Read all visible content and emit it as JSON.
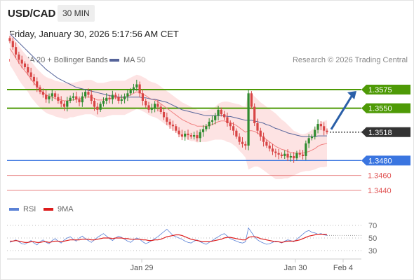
{
  "header": {
    "pair": "USD/CAD",
    "timeframe": "30 MIN",
    "datetime": "Friday, January 30, 2026 5:17:56 AM CET"
  },
  "legend": {
    "ma20": "MA 20 + Bollinger Bands",
    "ma50": "MA 50",
    "credit": "Research © 2026 Trading Central",
    "rsi": "RSI",
    "rsi_ma": "9MA"
  },
  "colors": {
    "bull": "#2e8b2e",
    "bear": "#d84545",
    "ma20": "#f08080",
    "band_fill": "#fde3e3",
    "ma50": "#56649a",
    "resistance": "#4e9a06",
    "current": "#333333",
    "pivot": "#3a75e0",
    "support": "#e05555",
    "rsi": "#5b82d6",
    "rsi_ma": "#dd1b1b",
    "arrow": "#2a5fa8"
  },
  "chart_data": [
    {
      "type": "candlestick",
      "title": "USD/CAD 30 MIN",
      "x_ticks": [
        "Jan 29",
        "Jan 30",
        "Feb 4"
      ],
      "ylim": [
        1.3425,
        1.3605
      ],
      "levels": [
        {
          "label": "1.3575",
          "value": 1.3575,
          "kind": "resistance"
        },
        {
          "label": "1.3550",
          "value": 1.355,
          "kind": "resistance"
        },
        {
          "label": "1.3518",
          "value": 1.3518,
          "kind": "current"
        },
        {
          "label": "1.3480",
          "value": 1.348,
          "kind": "pivot"
        },
        {
          "label": "1.3460",
          "value": 1.346,
          "kind": "support"
        },
        {
          "label": "1.3440",
          "value": 1.344,
          "kind": "support"
        }
      ],
      "close": [
        1.364,
        1.3632,
        1.3622,
        1.3615,
        1.361,
        1.3605,
        1.3598,
        1.3592,
        1.3586,
        1.3578,
        1.3572,
        1.3568,
        1.3562,
        1.3566,
        1.357,
        1.3565,
        1.356,
        1.3556,
        1.3552,
        1.356,
        1.3564,
        1.3566,
        1.3562,
        1.3558,
        1.3566,
        1.3572,
        1.3568,
        1.356,
        1.3552,
        1.3548,
        1.3556,
        1.356,
        1.3564,
        1.3562,
        1.3568,
        1.3565,
        1.356,
        1.3562,
        1.3566,
        1.357,
        1.3574,
        1.3578,
        1.3582,
        1.357,
        1.356,
        1.3554,
        1.3548,
        1.355,
        1.3556,
        1.3552,
        1.3545,
        1.3538,
        1.3532,
        1.3528,
        1.3526,
        1.352,
        1.3515,
        1.3512,
        1.3516,
        1.3514,
        1.3512,
        1.3514,
        1.351,
        1.3518,
        1.3522,
        1.3526,
        1.3532,
        1.3534,
        1.354,
        1.3548,
        1.3542,
        1.3538,
        1.353,
        1.3526,
        1.352,
        1.3512,
        1.3505,
        1.3502,
        1.35,
        1.357,
        1.3552,
        1.353,
        1.352,
        1.3512,
        1.3505,
        1.35,
        1.3496,
        1.3492,
        1.349,
        1.3488,
        1.3486,
        1.3489,
        1.3484,
        1.3486,
        1.3483,
        1.349,
        1.3488,
        1.3486,
        1.3503,
        1.351,
        1.3512,
        1.3521,
        1.3529,
        1.3526,
        1.352,
        1.3518
      ],
      "ma20": [
        1.363,
        1.3624,
        1.3617,
        1.3611,
        1.3605,
        1.36,
        1.3595,
        1.3589,
        1.3584,
        1.3579,
        1.3575,
        1.3571,
        1.3568,
        1.3566,
        1.3565,
        1.3563,
        1.3562,
        1.3561,
        1.356,
        1.356,
        1.3561,
        1.3561,
        1.3562,
        1.3563,
        1.3564,
        1.3565,
        1.3565,
        1.3565,
        1.3563,
        1.3561,
        1.3561,
        1.3561,
        1.3562,
        1.3563,
        1.3564,
        1.3564,
        1.3564,
        1.3564,
        1.3564,
        1.3566,
        1.3568,
        1.357,
        1.3572,
        1.3571,
        1.3569,
        1.3567,
        1.3564,
        1.3562,
        1.3561,
        1.3559,
        1.3556,
        1.3553,
        1.355,
        1.3547,
        1.3544,
        1.3541,
        1.3538,
        1.3535,
        1.3533,
        1.3531,
        1.3529,
        1.3528,
        1.3526,
        1.3526,
        1.3526,
        1.3526,
        1.3527,
        1.3528,
        1.353,
        1.3532,
        1.3533,
        1.3533,
        1.3532,
        1.3531,
        1.3529,
        1.3527,
        1.3524,
        1.3521,
        1.3518,
        1.352,
        1.352,
        1.3519,
        1.3517,
        1.3514,
        1.3511,
        1.3508,
        1.3505,
        1.3502,
        1.3499,
        1.3497,
        1.3495,
        1.3494,
        1.3492,
        1.3491,
        1.349,
        1.349,
        1.349,
        1.349,
        1.3491,
        1.3492,
        1.3494,
        1.3496,
        1.3499,
        1.3501,
        1.3502,
        1.3503
      ],
      "bb_upper": [
        1.3652,
        1.3646,
        1.3639,
        1.3634,
        1.3628,
        1.3623,
        1.3618,
        1.3613,
        1.3608,
        1.3603,
        1.3599,
        1.3595,
        1.3592,
        1.359,
        1.3589,
        1.3587,
        1.3586,
        1.3585,
        1.3584,
        1.3584,
        1.3584,
        1.3584,
        1.3585,
        1.3586,
        1.3587,
        1.3588,
        1.3588,
        1.3588,
        1.3586,
        1.3584,
        1.3584,
        1.3584,
        1.3585,
        1.3586,
        1.3587,
        1.3587,
        1.3587,
        1.3587,
        1.3587,
        1.3589,
        1.3591,
        1.3593,
        1.3595,
        1.3594,
        1.3592,
        1.359,
        1.3587,
        1.3585,
        1.3584,
        1.3582,
        1.3579,
        1.3576,
        1.3573,
        1.357,
        1.3567,
        1.3564,
        1.3561,
        1.3558,
        1.3556,
        1.3554,
        1.3552,
        1.355,
        1.3548,
        1.3547,
        1.3547,
        1.3547,
        1.3548,
        1.3549,
        1.3552,
        1.3556,
        1.3558,
        1.3559,
        1.3559,
        1.3558,
        1.3557,
        1.3556,
        1.3555,
        1.3553,
        1.3552,
        1.3572,
        1.357,
        1.3566,
        1.3562,
        1.3558,
        1.3555,
        1.3552,
        1.3549,
        1.3546,
        1.3543,
        1.3539,
        1.3535,
        1.3532,
        1.3528,
        1.3524,
        1.352,
        1.3518,
        1.3516,
        1.3515,
        1.3516,
        1.3518,
        1.3521,
        1.3524,
        1.3528,
        1.3531,
        1.3533,
        1.3534
      ],
      "bb_lower": [
        1.3608,
        1.3602,
        1.3595,
        1.3588,
        1.3582,
        1.3577,
        1.3572,
        1.3565,
        1.356,
        1.3555,
        1.3551,
        1.3547,
        1.3544,
        1.3542,
        1.3541,
        1.3539,
        1.3538,
        1.3537,
        1.3536,
        1.3536,
        1.3538,
        1.3538,
        1.3539,
        1.354,
        1.3541,
        1.3542,
        1.3542,
        1.3542,
        1.354,
        1.3538,
        1.3538,
        1.3538,
        1.3539,
        1.354,
        1.3541,
        1.3541,
        1.3541,
        1.3541,
        1.3541,
        1.3543,
        1.3545,
        1.3547,
        1.3549,
        1.3548,
        1.3546,
        1.3544,
        1.3541,
        1.3539,
        1.3538,
        1.3536,
        1.3533,
        1.353,
        1.3527,
        1.3524,
        1.3521,
        1.3518,
        1.3515,
        1.3512,
        1.351,
        1.3508,
        1.3506,
        1.3506,
        1.3504,
        1.3505,
        1.3505,
        1.3505,
        1.3506,
        1.3507,
        1.3508,
        1.3508,
        1.3508,
        1.3507,
        1.3505,
        1.3504,
        1.3501,
        1.3498,
        1.3493,
        1.3489,
        1.3484,
        1.3468,
        1.347,
        1.3472,
        1.3472,
        1.347,
        1.3467,
        1.3464,
        1.3461,
        1.3458,
        1.3455,
        1.3455,
        1.3455,
        1.3456,
        1.3456,
        1.3458,
        1.346,
        1.3462,
        1.3464,
        1.3465,
        1.3466,
        1.3466,
        1.3467,
        1.3468,
        1.347,
        1.3471,
        1.3471,
        1.3472
      ],
      "ma50": [
        1.365,
        1.3646,
        1.3642,
        1.3638,
        1.3634,
        1.363,
        1.3626,
        1.3622,
        1.3618,
        1.3614,
        1.361,
        1.3606,
        1.3602,
        1.3599,
        1.3596,
        1.3593,
        1.359,
        1.3588,
        1.3586,
        1.3584,
        1.3582,
        1.358,
        1.3578,
        1.3577,
        1.3576,
        1.3575,
        1.3574,
        1.3573,
        1.3572,
        1.3571,
        1.357,
        1.3569,
        1.3568,
        1.3567,
        1.3566,
        1.3566,
        1.3565,
        1.3565,
        1.3565,
        1.3565,
        1.3565,
        1.3565,
        1.3565,
        1.3565,
        1.3564,
        1.3564,
        1.3563,
        1.3562,
        1.3562,
        1.3561,
        1.356,
        1.3559,
        1.3558,
        1.3556,
        1.3554,
        1.3552,
        1.355,
        1.3548,
        1.3547,
        1.3546,
        1.3545,
        1.3544,
        1.3543,
        1.3542,
        1.3541,
        1.354,
        1.354,
        1.354,
        1.354,
        1.354,
        1.354,
        1.354,
        1.3539,
        1.3539,
        1.3538,
        1.3537,
        1.3536,
        1.3535,
        1.3534,
        1.3534,
        1.3534,
        1.3533,
        1.3532,
        1.3531,
        1.353,
        1.3528,
        1.3527,
        1.3525,
        1.3523,
        1.3522,
        1.352,
        1.3519,
        1.3517,
        1.3516,
        1.3515,
        1.3514,
        1.3513,
        1.3512,
        1.3512,
        1.3512,
        1.3512,
        1.3512,
        1.3513,
        1.3513,
        1.3513,
        1.3513
      ]
    },
    {
      "type": "line",
      "title": "RSI",
      "y_ticks": [
        "70",
        "50",
        "30"
      ],
      "ylim": [
        20,
        80
      ],
      "series": [
        {
          "name": "RSI",
          "values": [
            43,
            45,
            47,
            44,
            41,
            40,
            43,
            46,
            42,
            39,
            44,
            47,
            43,
            41,
            46,
            49,
            45,
            42,
            47,
            50,
            52,
            48,
            45,
            50,
            53,
            49,
            46,
            43,
            47,
            51,
            54,
            57,
            53,
            49,
            46,
            50,
            53,
            51,
            48,
            45,
            43,
            47,
            50,
            48,
            44,
            41,
            43,
            46,
            49,
            52,
            56,
            60,
            64,
            59,
            54,
            52,
            50,
            48,
            45,
            43,
            42,
            45,
            47,
            44,
            42,
            40,
            43,
            46,
            49,
            52,
            55,
            57,
            53,
            49,
            47,
            45,
            43,
            42,
            44,
            66,
            59,
            52,
            47,
            44,
            42,
            40,
            41,
            43,
            45,
            44,
            42,
            45,
            47,
            46,
            44,
            48,
            52,
            56,
            60,
            62,
            59,
            58,
            56,
            57,
            55,
            54
          ]
        },
        {
          "name": "9MA",
          "values": [
            45,
            45,
            46,
            45,
            44,
            43,
            43,
            44,
            44,
            43,
            43,
            44,
            44,
            43,
            44,
            45,
            45,
            44,
            45,
            46,
            47,
            47,
            47,
            47,
            48,
            48,
            48,
            47,
            47,
            48,
            49,
            50,
            50,
            50,
            49,
            50,
            50,
            50,
            49,
            49,
            48,
            48,
            48,
            48,
            47,
            47,
            46,
            46,
            47,
            47,
            48,
            50,
            52,
            53,
            54,
            55,
            55,
            54,
            52,
            50,
            48,
            47,
            46,
            45,
            44,
            44,
            44,
            45,
            46,
            47,
            48,
            50,
            51,
            51,
            50,
            49,
            48,
            47,
            47,
            51,
            52,
            52,
            51,
            49,
            48,
            47,
            46,
            45,
            44,
            44,
            43,
            44,
            45,
            45,
            45,
            46,
            47,
            49,
            51,
            53,
            54,
            55,
            56,
            56,
            56,
            56
          ]
        }
      ]
    }
  ]
}
